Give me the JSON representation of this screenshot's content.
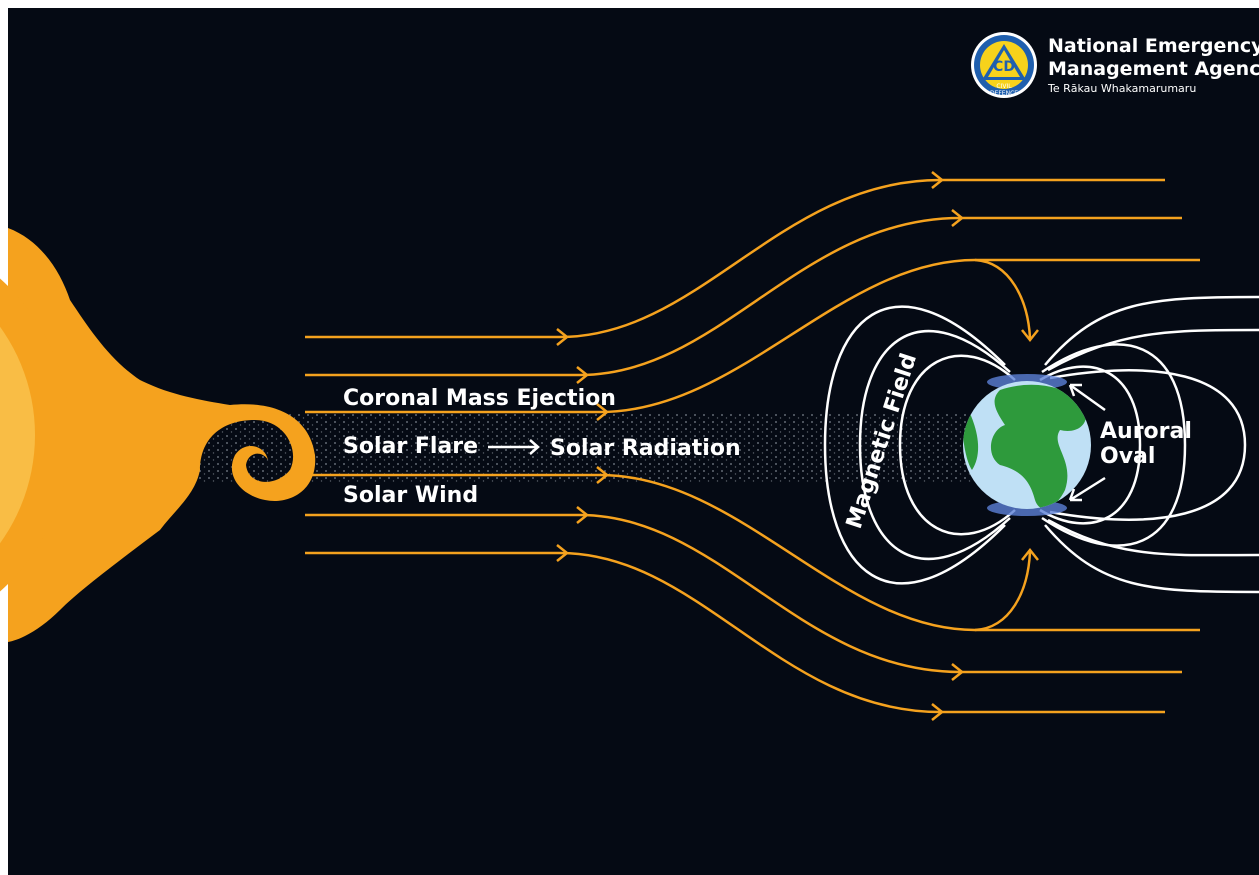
{
  "logo": {
    "emblem": "CD",
    "ring": [
      "CIVIL",
      "DEFENCE"
    ],
    "name": [
      "National Emergency",
      "Management Agency"
    ],
    "subtitle": "Te Rākau Whakamarumaru"
  },
  "labels": {
    "cme": "Coronal Mass Ejection",
    "flare": "Solar Flare",
    "radiation": "Solar Radiation",
    "wind": "Solar Wind",
    "field": "Magnetic Field",
    "aurora": [
      "Auroral",
      "Oval"
    ]
  }
}
